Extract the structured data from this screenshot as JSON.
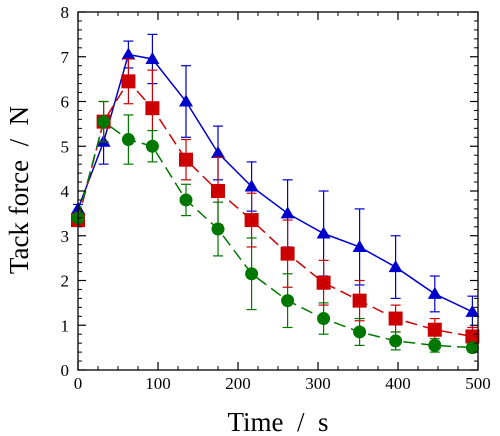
{
  "chart_data": {
    "type": "line",
    "xlabel": "Time  /  s",
    "ylabel": "Tack force  /  N",
    "xlim": [
      0,
      500
    ],
    "ylim": [
      0,
      8
    ],
    "x_ticks": [
      0,
      100,
      200,
      300,
      400,
      500
    ],
    "y_ticks": [
      0,
      1,
      2,
      3,
      4,
      5,
      6,
      7,
      8
    ],
    "x_tick_labels": [
      "0",
      "100",
      "200",
      "300",
      "400",
      "500"
    ],
    "y_tick_labels": [
      "0",
      "1",
      "2",
      "3",
      "4",
      "5",
      "6",
      "7",
      "8"
    ],
    "grid": false,
    "legend": "none",
    "series": [
      {
        "marker": "triangle",
        "line_style": "solid",
        "color": "#0000cc",
        "x": [
          0,
          32,
          63,
          93,
          135,
          175,
          217,
          262,
          307,
          352,
          397,
          446,
          493
        ],
        "y": [
          3.6,
          5.1,
          7.05,
          6.95,
          6.0,
          4.85,
          4.1,
          3.5,
          3.05,
          2.75,
          2.3,
          1.7,
          1.3
        ],
        "err": [
          0.1,
          0.5,
          0.3,
          0.55,
          0.8,
          0.6,
          0.55,
          0.75,
          0.95,
          0.85,
          0.7,
          0.4,
          0.35
        ]
      },
      {
        "marker": "square",
        "line_style": "dashed",
        "color": "#cc0000",
        "x": [
          0,
          32,
          63,
          93,
          135,
          175,
          217,
          262,
          307,
          352,
          397,
          446,
          493
        ],
        "y": [
          3.35,
          5.55,
          6.45,
          5.85,
          4.7,
          4.0,
          3.35,
          2.6,
          1.95,
          1.55,
          1.15,
          0.9,
          0.75
        ],
        "err": [
          0.1,
          0.45,
          0.5,
          0.85,
          0.45,
          0.75,
          0.6,
          0.75,
          0.5,
          0.45,
          0.3,
          0.25,
          0.2
        ]
      },
      {
        "marker": "circle",
        "line_style": "dashed",
        "color": "#007700",
        "x": [
          0,
          32,
          63,
          93,
          135,
          175,
          217,
          262,
          307,
          352,
          397,
          446,
          493
        ],
        "y": [
          3.4,
          5.55,
          5.15,
          5.0,
          3.8,
          3.15,
          2.15,
          1.55,
          1.15,
          0.85,
          0.65,
          0.55,
          0.5
        ],
        "err": [
          0.1,
          0.45,
          0.55,
          0.35,
          0.35,
          0.6,
          0.8,
          0.6,
          0.35,
          0.3,
          0.2,
          0.15,
          0.1
        ]
      }
    ]
  }
}
